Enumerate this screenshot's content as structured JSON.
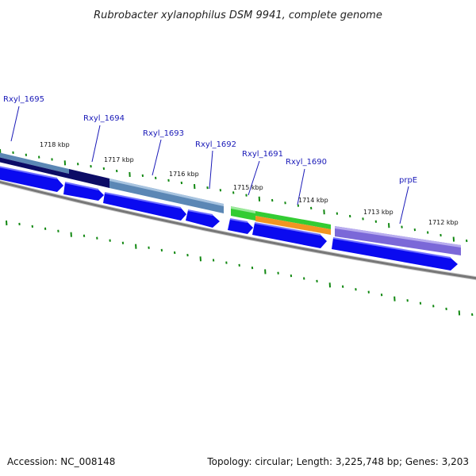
{
  "title": "Rubrobacter xylanophilus DSM 9941, complete genome",
  "accession": "Accession: NC_008148",
  "topology": "Topology: circular; Length: 3,225,748 bp; Genes: 3,203",
  "colors": {
    "backbone": "#777777",
    "cds": "#0a0af0",
    "tick": "#118811",
    "gene_label": "#1a1ab8",
    "feat_steel": "#5b87b5",
    "feat_navy": "#0c0c66",
    "feat_green": "#33cc33",
    "feat_orange": "#f29522",
    "feat_purple": "#7b68d8"
  },
  "kbp_labels": [
    "1718 kbp",
    "1717 kbp",
    "1716 kbp",
    "1715 kbp",
    "1714 kbp",
    "1713 kbp",
    "1712 kbp"
  ],
  "gene_labels": [
    "Rxyl_1695",
    "Rxyl_1694",
    "Rxyl_1693",
    "Rxyl_1692",
    "Rxyl_1691",
    "Rxyl_1690",
    "prpE"
  ]
}
